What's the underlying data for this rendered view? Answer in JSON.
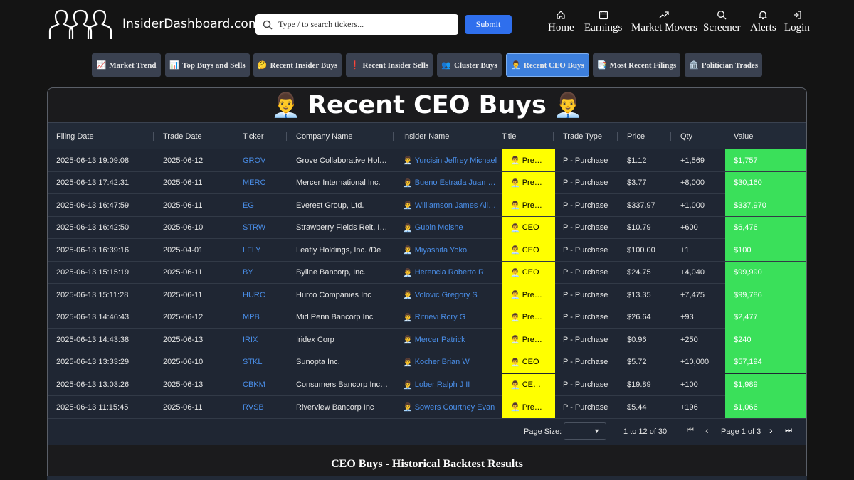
{
  "brand": {
    "name": "InsiderDashboard.com",
    "logo_icon": "three-people-logo"
  },
  "search": {
    "placeholder": "Type / to search tickers...",
    "submit_label": "Submit"
  },
  "nav": [
    {
      "label": "Home",
      "icon": "home-icon"
    },
    {
      "label": "Earnings",
      "icon": "calendar-icon"
    },
    {
      "label": "Market Movers",
      "icon": "trend-icon"
    },
    {
      "label": "Screener",
      "icon": "search-icon"
    },
    {
      "label": "Alerts",
      "icon": "bell-icon"
    },
    {
      "label": "Login",
      "icon": "login-icon"
    }
  ],
  "tabs": [
    {
      "icon": "📈",
      "label": "Market Trend"
    },
    {
      "icon": "📊",
      "label": "Top Buys and Sells"
    },
    {
      "icon": "🤔",
      "label": "Recent Insider Buys"
    },
    {
      "icon": "❗",
      "label": "Recent Insider Sells"
    },
    {
      "icon": "👥",
      "label": "Cluster Buys"
    },
    {
      "icon": "👨‍💼",
      "label": "Recent CEO Buys",
      "active": true
    },
    {
      "icon": "📑",
      "label": "Most Recent Filings"
    },
    {
      "icon": "🏛️",
      "label": "Politician Trades"
    }
  ],
  "page": {
    "title": "Recent CEO Buys",
    "title_emoji": "👨‍💼"
  },
  "table": {
    "columns": [
      "Filing Date",
      "Trade Date",
      "Ticker",
      "Company Name",
      "Insider Name",
      "Title",
      "Trade Type",
      "Price",
      "Qty",
      "Value"
    ],
    "person_emoji": "👨‍💼",
    "rows": [
      [
        "2025-06-13 19:09:08",
        "2025-06-12",
        "GROV",
        "Grove Collaborative Hol…",
        "Yurcisin Jeffrey Michael",
        "Pre…",
        "P - Purchase",
        "$1.12",
        "+1,569",
        "$1,757"
      ],
      [
        "2025-06-13 17:42:31",
        "2025-06-11",
        "MERC",
        "Mercer International Inc.",
        "Bueno Estrada Juan …",
        "Pre…",
        "P - Purchase",
        "$3.77",
        "+8,000",
        "$30,160"
      ],
      [
        "2025-06-13 16:47:59",
        "2025-06-11",
        "EG",
        "Everest Group, Ltd.",
        "Williamson James All…",
        "Pre…",
        "P - Purchase",
        "$337.97",
        "+1,000",
        "$337,970"
      ],
      [
        "2025-06-13 16:42:50",
        "2025-06-10",
        "STRW",
        "Strawberry Fields Reit, I…",
        "Gubin Moishe",
        "CEO",
        "P - Purchase",
        "$10.79",
        "+600",
        "$6,476"
      ],
      [
        "2025-06-13 16:39:16",
        "2025-04-01",
        "LFLY",
        "Leafly Holdings, Inc. /De",
        "Miyashita Yoko",
        "CEO",
        "P - Purchase",
        "$100.00",
        "+1",
        "$100"
      ],
      [
        "2025-06-13 15:15:19",
        "2025-06-11",
        "BY",
        "Byline Bancorp, Inc.",
        "Herencia Roberto R",
        "CEO",
        "P - Purchase",
        "$24.75",
        "+4,040",
        "$99,990"
      ],
      [
        "2025-06-13 15:11:28",
        "2025-06-11",
        "HURC",
        "Hurco Companies Inc",
        "Volovic Gregory S",
        "Pre…",
        "P - Purchase",
        "$13.35",
        "+7,475",
        "$99,786"
      ],
      [
        "2025-06-13 14:46:43",
        "2025-06-12",
        "MPB",
        "Mid Penn Bancorp Inc",
        "Ritrievi Rory G",
        "Pre…",
        "P - Purchase",
        "$26.64",
        "+93",
        "$2,477"
      ],
      [
        "2025-06-13 14:43:38",
        "2025-06-13",
        "IRIX",
        "Iridex Corp",
        "Mercer Patrick",
        "Pre…",
        "P - Purchase",
        "$0.96",
        "+250",
        "$240"
      ],
      [
        "2025-06-13 13:33:29",
        "2025-06-10",
        "STKL",
        "Sunopta Inc.",
        "Kocher Brian W",
        "CEO",
        "P - Purchase",
        "$5.72",
        "+10,000",
        "$57,194"
      ],
      [
        "2025-06-13 13:03:26",
        "2025-06-13",
        "CBKM",
        "Consumers Bancorp Inc…",
        "Lober Ralph J II",
        "CE…",
        "P - Purchase",
        "$19.89",
        "+100",
        "$1,989"
      ],
      [
        "2025-06-13 11:15:45",
        "2025-06-11",
        "RVSB",
        "Riverview Bancorp Inc",
        "Sowers Courtney Evan",
        "Pre…",
        "P - Purchase",
        "$5.44",
        "+196",
        "$1,066"
      ]
    ]
  },
  "pager": {
    "page_size_label": "Page Size:",
    "range_text": "1 to 12 of 30",
    "page_info": "Page 1 of 3",
    "buttons": [
      "⏮",
      "‹",
      "›",
      "⏭"
    ]
  },
  "backtest": {
    "title": "CEO Buys - Historical Backtest Results"
  },
  "colors": {
    "accent": "#2f6fed",
    "title_highlight": "#ffff00",
    "value_highlight": "#3ae05a",
    "link": "#4a8ee8"
  }
}
